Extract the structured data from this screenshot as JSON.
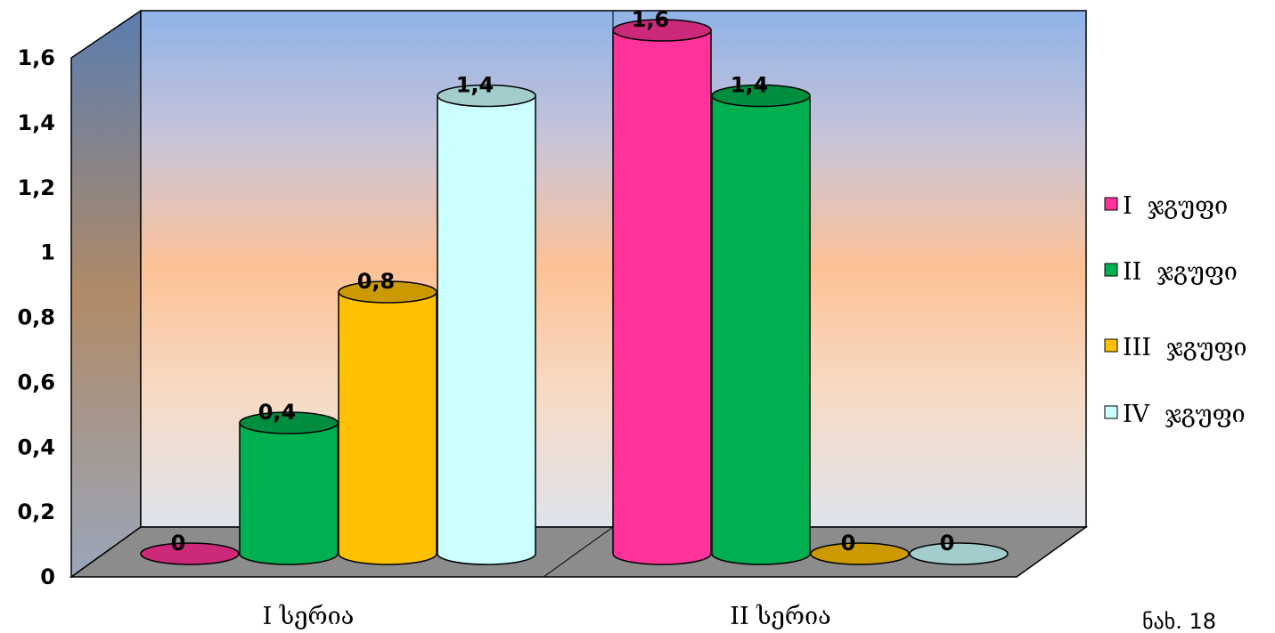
{
  "chart_data": {
    "type": "bar",
    "style": "3d-cylinder",
    "categories": [
      "I  სერია",
      "II  სერია"
    ],
    "series": [
      {
        "name": "I  ჯგუფი",
        "values": [
          0,
          1.6
        ],
        "color": "#ff3399"
      },
      {
        "name": "II  ჯგუფი",
        "values": [
          0.4,
          1.4
        ],
        "color": "#00b050"
      },
      {
        "name": "III  ჯგუფი",
        "values": [
          0.8,
          0
        ],
        "color": "#ffc000"
      },
      {
        "name": "IV  ჯგუფი",
        "values": [
          1.4,
          0
        ],
        "color": "#ccffff"
      }
    ],
    "data_labels": [
      [
        "0",
        "1,6"
      ],
      [
        "0,4",
        "1,4"
      ],
      [
        "0,8",
        "0"
      ],
      [
        "1,4",
        "0"
      ]
    ],
    "y_ticks": [
      "0",
      "0,2",
      "0,4",
      "0,6",
      "0,8",
      "1",
      "1,2",
      "1,4",
      "1,6"
    ],
    "ylim": [
      0,
      1.6
    ],
    "legend_position": "right",
    "grid": false
  },
  "figure_label": "ნახ. 18"
}
